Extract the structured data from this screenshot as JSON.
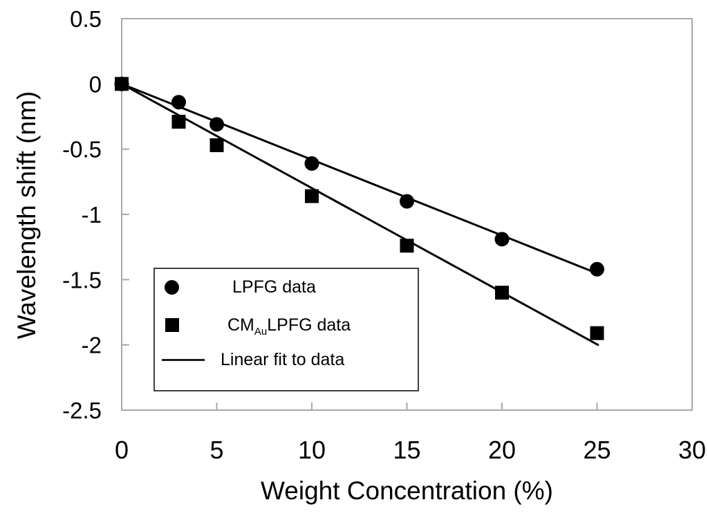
{
  "chart_data": {
    "type": "scatter",
    "title": "",
    "xlabel": "Weight Concentration (%)",
    "ylabel": "Wavelength shift (nm)",
    "xlim": [
      0,
      30
    ],
    "ylim": [
      -2.5,
      0.5
    ],
    "grid": false,
    "x_ticks": [
      0,
      5,
      10,
      15,
      20,
      25,
      30
    ],
    "x_tick_labels": [
      "0",
      "5",
      "10",
      "15",
      "20",
      "25",
      "30"
    ],
    "y_ticks": [
      0.5,
      0,
      -0.5,
      -1,
      -1.5,
      -2,
      -2.5
    ],
    "y_tick_labels": [
      "0.5",
      "0",
      "-0.5",
      "-1",
      "-1.5",
      "-2",
      "-2.5"
    ],
    "series": [
      {
        "name": "LPFG data",
        "marker": "circle",
        "x": [
          0,
          3,
          5,
          10,
          15,
          20,
          25
        ],
        "y": [
          0,
          -0.14,
          -0.31,
          -0.61,
          -0.9,
          -1.19,
          -1.42
        ]
      },
      {
        "name": "CMAuLPFG data",
        "marker": "square",
        "x": [
          0,
          3,
          5,
          10,
          15,
          20,
          25
        ],
        "y": [
          0,
          -0.29,
          -0.47,
          -0.86,
          -1.24,
          -1.6,
          -1.91
        ]
      }
    ],
    "fits": [
      {
        "name": "Linear fit to LPFG data",
        "x": [
          0,
          24.8
        ],
        "y": [
          0,
          -1.44
        ]
      },
      {
        "name": "Linear fit to CMAuLPFG data",
        "x": [
          0,
          25.05
        ],
        "y": [
          0,
          -2.0
        ]
      }
    ],
    "legend_position": "inside-lower-left"
  },
  "legend": {
    "items": [
      {
        "marker": "circle-icon",
        "label": "LPFG data"
      },
      {
        "marker": "square-icon",
        "label_prefix": "CM",
        "label_sub": "Au",
        "label_suffix": "LPFG data"
      },
      {
        "marker": "line-icon",
        "label": "Linear fit to data"
      }
    ]
  },
  "colors": {
    "data": "#000000",
    "axis_frame": "#a8a8a8",
    "legend_border": "#3f3f3f"
  }
}
